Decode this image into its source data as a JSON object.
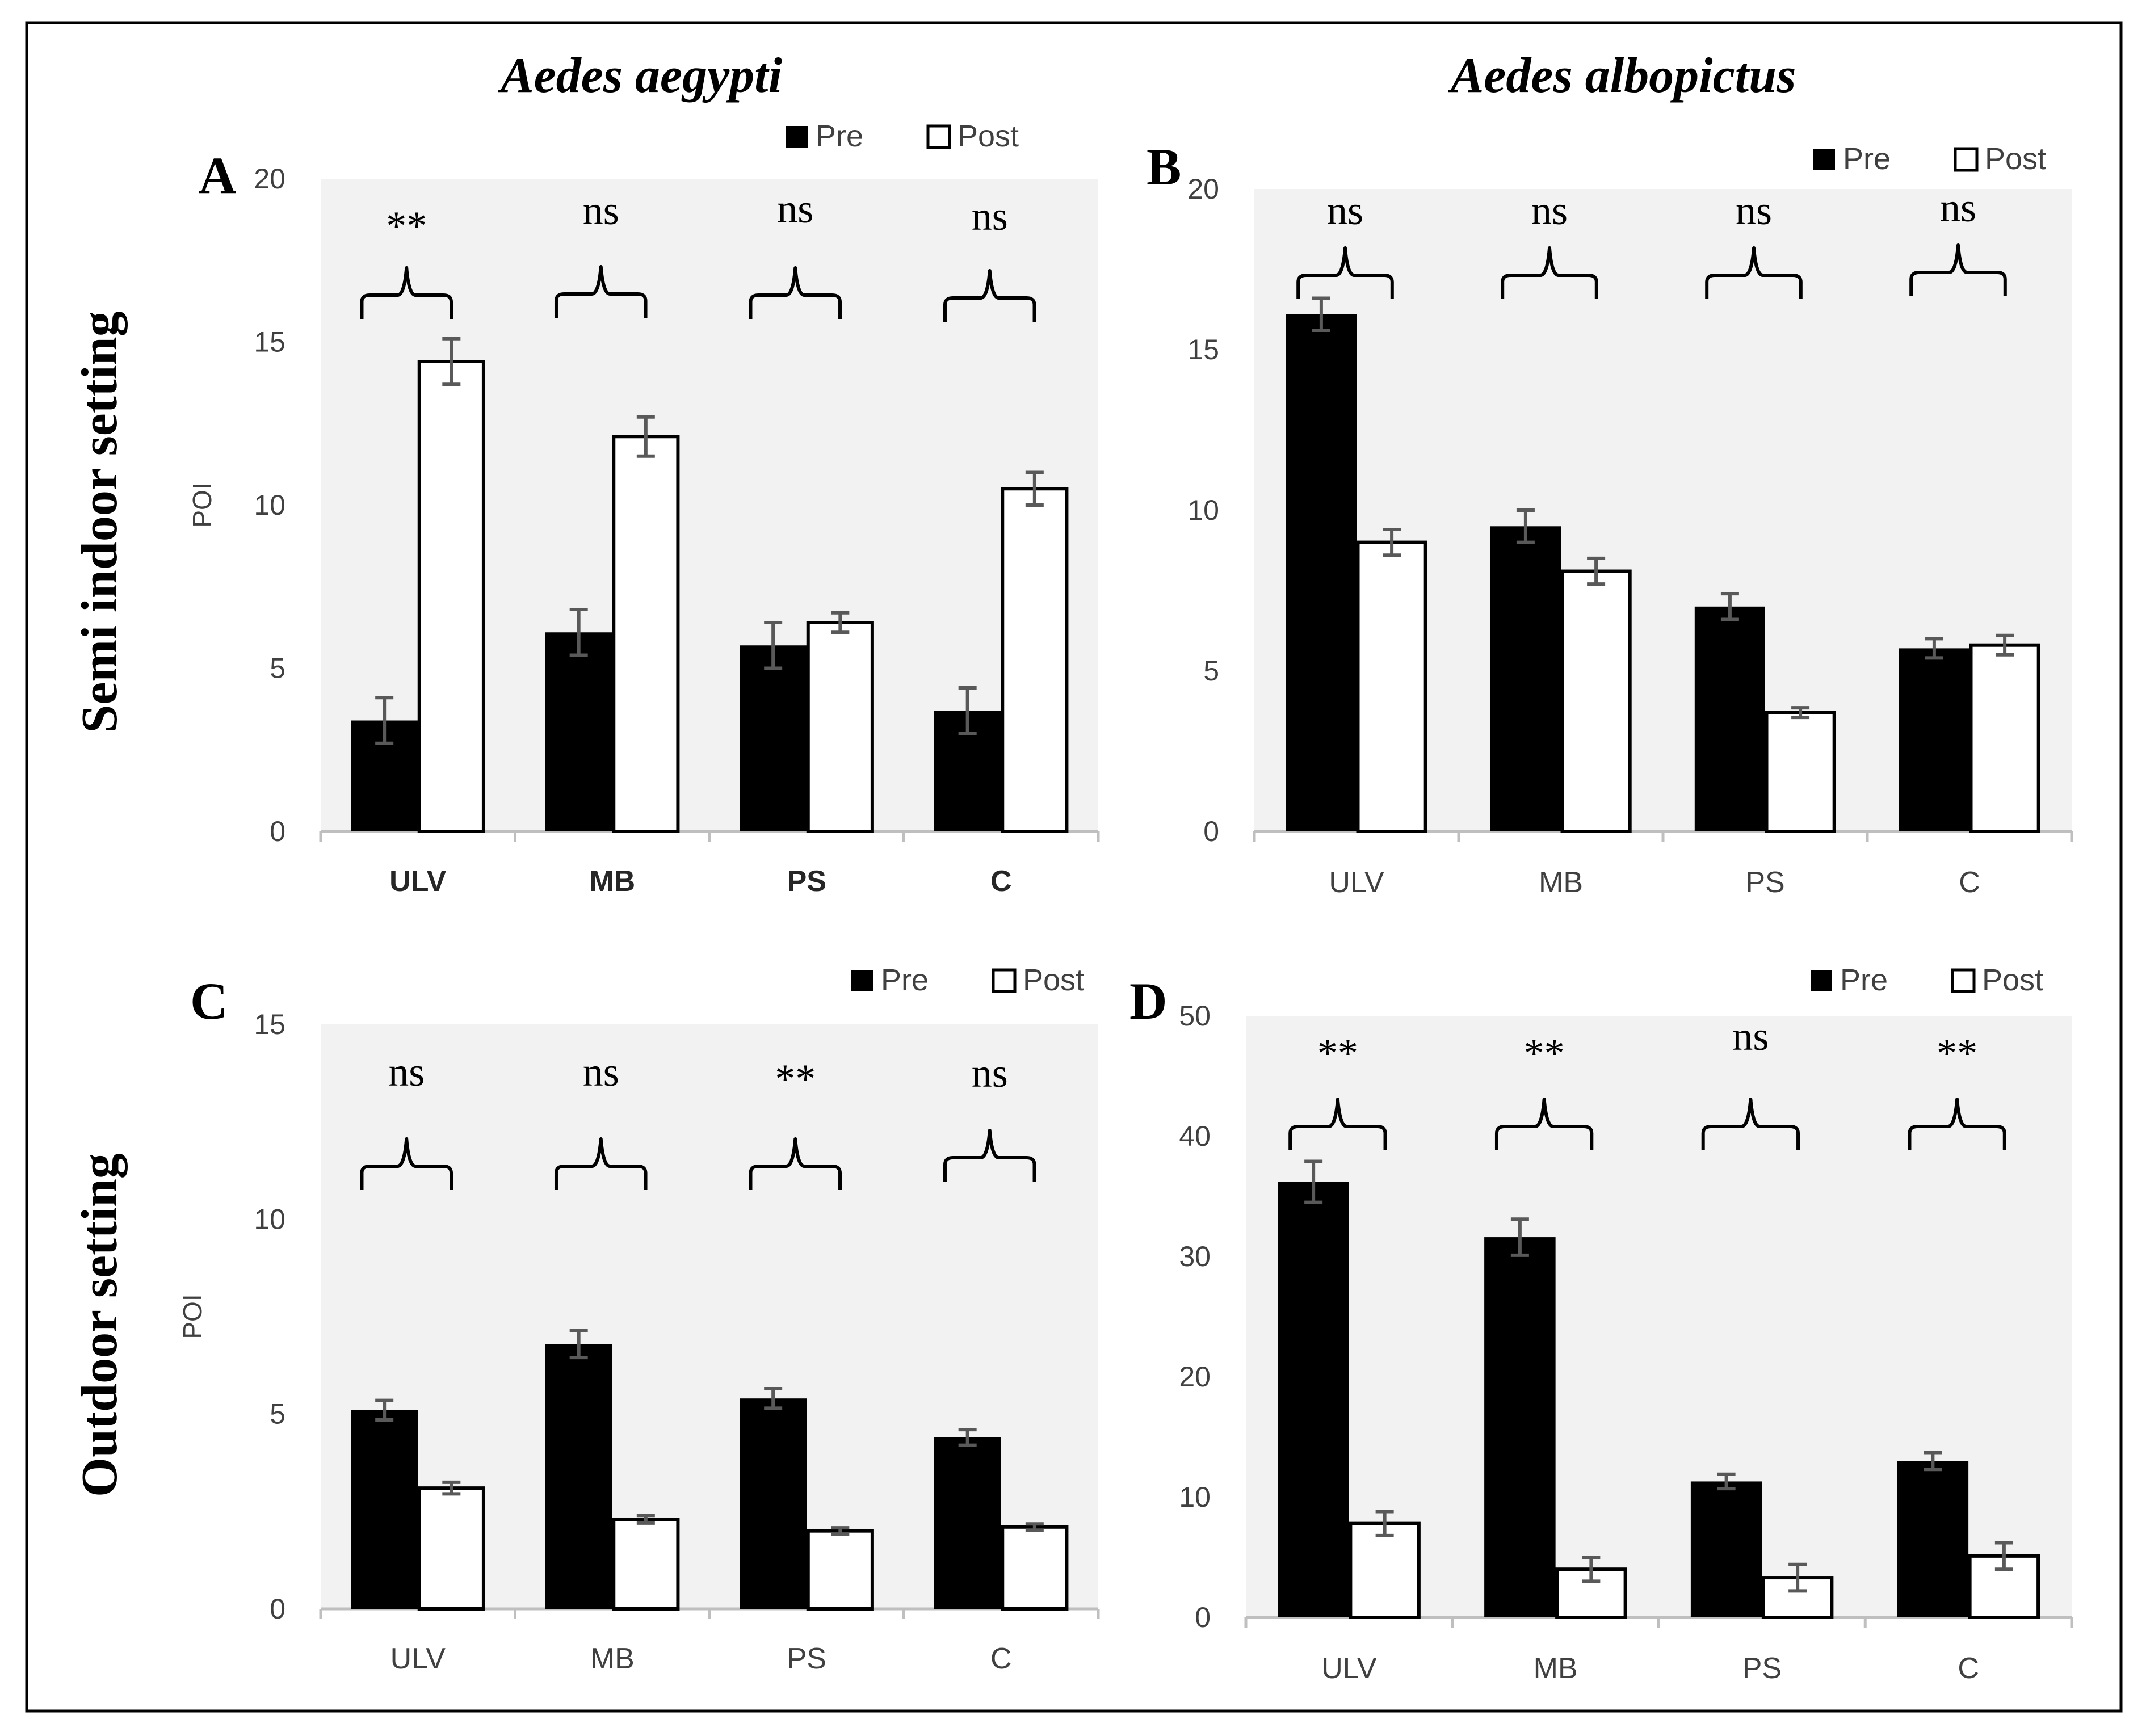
{
  "figure": {
    "species_left": "Aedes aegypti",
    "species_right": "Aedes albopictus",
    "row_label_top": "Semi indoor setting",
    "row_label_bottom": "Outdoor setting"
  },
  "colors": {
    "pre": "#000000",
    "post": "#ffffff",
    "plot_bg": "#f2f2f2",
    "axis": "#bfbfbf",
    "error_bar": "#595959",
    "text": "#000000"
  },
  "chart_data": [
    {
      "type": "bar",
      "panel": "A",
      "title": "",
      "ylabel": "POI",
      "ylim": [
        0,
        20
      ],
      "yticks": [
        0,
        5,
        10,
        15,
        20
      ],
      "categories": [
        "ULV",
        "MB",
        "PS",
        "C"
      ],
      "bold_ticks": true,
      "series": [
        {
          "name": "Pre",
          "values": [
            3.4,
            6.1,
            5.7,
            3.7
          ],
          "errors": [
            0.7,
            0.7,
            0.7,
            0.7
          ]
        },
        {
          "name": "Post",
          "values": [
            14.4,
            12.1,
            6.4,
            10.5
          ],
          "errors": [
            0.7,
            0.6,
            0.3,
            0.5
          ]
        }
      ],
      "significance": [
        "**",
        "ns",
        "ns",
        "ns"
      ]
    },
    {
      "type": "bar",
      "panel": "B",
      "title": "",
      "ylabel": "",
      "ylim": [
        0,
        20
      ],
      "yticks": [
        0,
        5,
        10,
        15,
        20
      ],
      "categories": [
        "ULV",
        "MB",
        "PS",
        "C"
      ],
      "bold_ticks": false,
      "series": [
        {
          "name": "Pre",
          "values": [
            16.1,
            9.5,
            7.0,
            5.7
          ],
          "errors": [
            0.5,
            0.5,
            0.4,
            0.3
          ]
        },
        {
          "name": "Post",
          "values": [
            9.0,
            8.1,
            3.7,
            5.8
          ],
          "errors": [
            0.4,
            0.4,
            0.15,
            0.3
          ]
        }
      ],
      "significance": [
        "ns",
        "ns",
        "ns",
        "ns"
      ]
    },
    {
      "type": "bar",
      "panel": "C",
      "title": "",
      "ylabel": "POI",
      "ylim": [
        0,
        15
      ],
      "yticks": [
        0,
        5,
        10,
        15
      ],
      "categories": [
        "ULV",
        "MB",
        "PS",
        "C"
      ],
      "bold_ticks": false,
      "series": [
        {
          "name": "Pre",
          "values": [
            5.1,
            6.8,
            5.4,
            4.4
          ],
          "errors": [
            0.25,
            0.35,
            0.25,
            0.2
          ]
        },
        {
          "name": "Post",
          "values": [
            3.1,
            2.3,
            2.0,
            2.1
          ],
          "errors": [
            0.15,
            0.1,
            0.08,
            0.08
          ]
        }
      ],
      "significance": [
        "ns",
        "ns",
        "**",
        "ns"
      ]
    },
    {
      "type": "bar",
      "panel": "D",
      "title": "",
      "ylabel": "",
      "ylim": [
        0,
        50
      ],
      "yticks": [
        0,
        10,
        20,
        30,
        40,
        50
      ],
      "categories": [
        "ULV",
        "MB",
        "PS",
        "C"
      ],
      "bold_ticks": false,
      "series": [
        {
          "name": "Pre",
          "values": [
            36.2,
            31.6,
            11.3,
            13.0
          ],
          "errors": [
            1.7,
            1.5,
            0.6,
            0.7
          ]
        },
        {
          "name": "Post",
          "values": [
            7.8,
            4.0,
            3.3,
            5.1
          ],
          "errors": [
            1.0,
            1.0,
            1.1,
            1.1
          ]
        }
      ],
      "significance": [
        "**",
        "**",
        "ns",
        "**"
      ]
    }
  ]
}
